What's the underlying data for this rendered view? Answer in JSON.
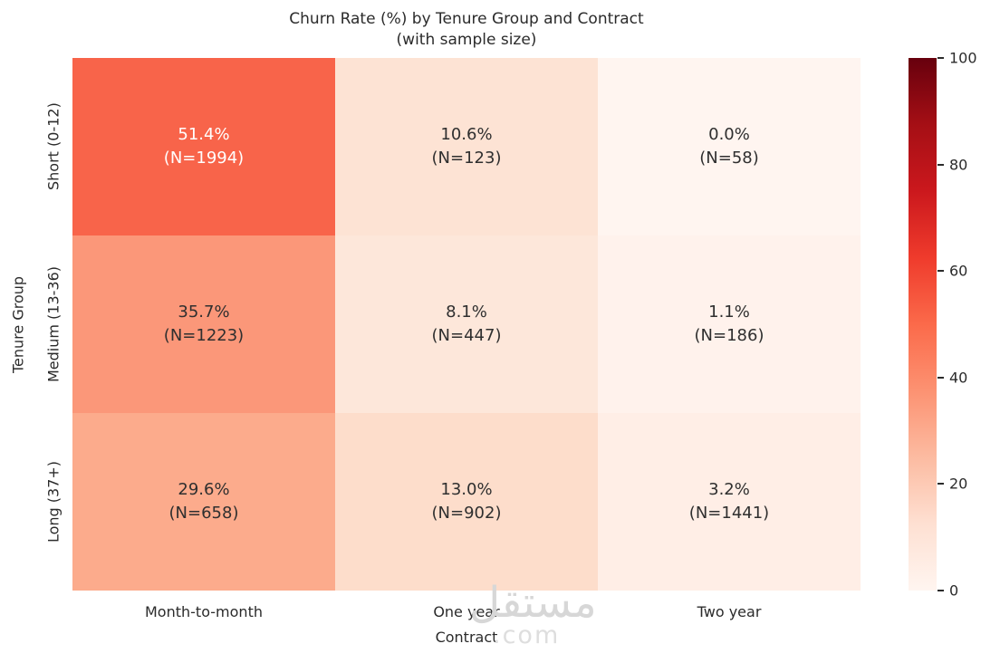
{
  "chart_data": {
    "type": "heatmap",
    "title_lines": [
      "Churn Rate (%) by Tenure Group and Contract",
      "(with sample size)"
    ],
    "xlabel": "Contract",
    "ylabel": "Tenure Group",
    "x_categories": [
      "Month-to-month",
      "One year",
      "Two year"
    ],
    "y_categories": [
      "Short (0-12)",
      "Medium (13-36)",
      "Long (37+)"
    ],
    "values": [
      [
        51.4,
        10.6,
        0.0
      ],
      [
        35.7,
        8.1,
        1.1
      ],
      [
        29.6,
        13.0,
        3.2
      ]
    ],
    "sample_sizes": [
      [
        1994,
        123,
        58
      ],
      [
        1223,
        447,
        186
      ],
      [
        658,
        902,
        1441
      ]
    ],
    "cells": [
      [
        {
          "value": 51.4,
          "n": 1994,
          "pct_label": "51.4%",
          "n_label": "(N=1994)",
          "bg": "#f8644a",
          "text_color": "#ffffff"
        },
        {
          "value": 10.6,
          "n": 123,
          "pct_label": "10.6%",
          "n_label": "(N=123)",
          "bg": "#fde3d4",
          "text_color": "#2f2f2f"
        },
        {
          "value": 0.0,
          "n": 58,
          "pct_label": "0.0%",
          "n_label": "(N=58)",
          "bg": "#fff5f0",
          "text_color": "#2f2f2f"
        }
      ],
      [
        {
          "value": 35.7,
          "n": 1223,
          "pct_label": "35.7%",
          "n_label": "(N=1223)",
          "bg": "#fb9779",
          "text_color": "#2f2f2f"
        },
        {
          "value": 8.1,
          "n": 447,
          "pct_label": "8.1%",
          "n_label": "(N=447)",
          "bg": "#fde7da",
          "text_color": "#2f2f2f"
        },
        {
          "value": 1.1,
          "n": 186,
          "pct_label": "1.1%",
          "n_label": "(N=186)",
          "bg": "#fff2ec",
          "text_color": "#2f2f2f"
        }
      ],
      [
        {
          "value": 29.6,
          "n": 658,
          "pct_label": "29.6%",
          "n_label": "(N=658)",
          "bg": "#fcab8c",
          "text_color": "#2f2f2f"
        },
        {
          "value": 13.0,
          "n": 902,
          "pct_label": "13.0%",
          "n_label": "(N=902)",
          "bg": "#fdddcb",
          "text_color": "#2f2f2f"
        },
        {
          "value": 3.2,
          "n": 1441,
          "pct_label": "3.2%",
          "n_label": "(N=1441)",
          "bg": "#ffeee6",
          "text_color": "#2f2f2f"
        }
      ]
    ],
    "colormap": "Reds",
    "colorbar": {
      "min": 0,
      "max": 100,
      "ticks": [
        {
          "value": 0,
          "label": "0"
        },
        {
          "value": 20,
          "label": "20"
        },
        {
          "value": 40,
          "label": "40"
        },
        {
          "value": 60,
          "label": "60"
        },
        {
          "value": 80,
          "label": "80"
        },
        {
          "value": 100,
          "label": "100"
        }
      ],
      "stops": [
        {
          "pos": 0,
          "color": "#fff5f0"
        },
        {
          "pos": 12.5,
          "color": "#fee0d2"
        },
        {
          "pos": 25,
          "color": "#fcbba1"
        },
        {
          "pos": 37.5,
          "color": "#fc9272"
        },
        {
          "pos": 50,
          "color": "#fb6a4a"
        },
        {
          "pos": 62.5,
          "color": "#ef3b2c"
        },
        {
          "pos": 75,
          "color": "#cb181d"
        },
        {
          "pos": 87.5,
          "color": "#a50f15"
        },
        {
          "pos": 100,
          "color": "#67000d"
        }
      ]
    },
    "legend_position": "right",
    "grid": false
  },
  "watermark": {
    "arabic": "مستقل",
    "suffix": ".com"
  }
}
